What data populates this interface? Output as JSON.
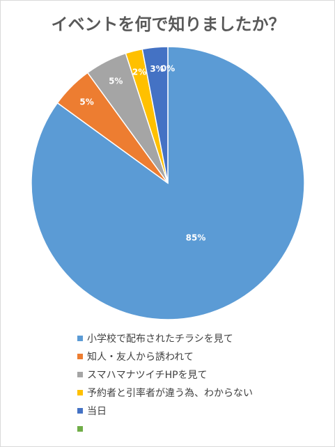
{
  "chart_data": {
    "type": "pie",
    "title": "イベントを何で知りましたか？",
    "categories": [
      "小学校で配布されたチラシを見て",
      "知人・友人から誘われて",
      "スマハマナツイチHPを見て",
      "予約者と引率者が違う為、わからない",
      "当日",
      ""
    ],
    "values": [
      85,
      5,
      5,
      2,
      3,
      0
    ],
    "data_labels": [
      "85%",
      "5%",
      "5%",
      "2%",
      "3%",
      "0%"
    ],
    "colors": [
      "#5b9bd5",
      "#ed7d31",
      "#a5a5a5",
      "#ffc000",
      "#4472c4",
      "#70ad47"
    ],
    "legend_position": "bottom"
  }
}
